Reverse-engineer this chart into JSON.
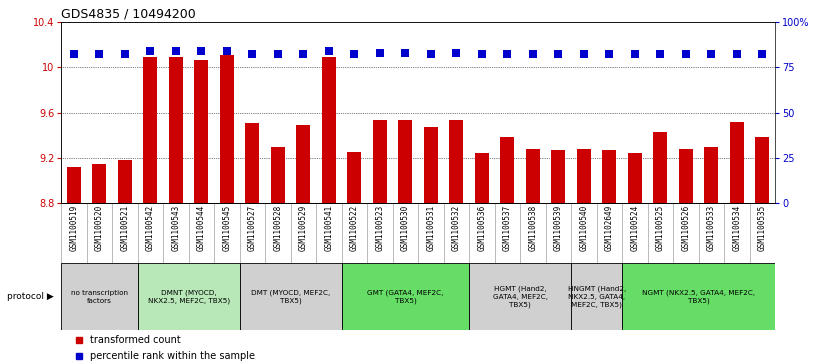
{
  "title": "GDS4835 / 10494200",
  "samples": [
    "GSM1100519",
    "GSM1100520",
    "GSM1100521",
    "GSM1100542",
    "GSM1100543",
    "GSM1100544",
    "GSM1100545",
    "GSM1100527",
    "GSM1100528",
    "GSM1100529",
    "GSM1100541",
    "GSM1100522",
    "GSM1100523",
    "GSM1100530",
    "GSM1100531",
    "GSM1100532",
    "GSM1100536",
    "GSM1100537",
    "GSM1100538",
    "GSM1100539",
    "GSM1100540",
    "GSM1102649",
    "GSM1100524",
    "GSM1100525",
    "GSM1100526",
    "GSM1100533",
    "GSM1100534",
    "GSM1100535"
  ],
  "bar_values": [
    9.12,
    9.15,
    9.18,
    10.09,
    10.09,
    10.06,
    10.11,
    9.51,
    9.3,
    9.49,
    10.09,
    9.25,
    9.53,
    9.53,
    9.47,
    9.53,
    9.24,
    9.38,
    9.28,
    9.27,
    9.28,
    9.27,
    9.24,
    9.43,
    9.28,
    9.3,
    9.52,
    9.38
  ],
  "percentile_values": [
    82,
    82,
    82,
    84,
    84,
    84,
    84,
    82,
    82,
    82,
    84,
    82,
    83,
    83,
    82,
    83,
    82,
    82,
    82,
    82,
    82,
    82,
    82,
    82,
    82,
    82,
    82,
    82
  ],
  "ymin": 8.8,
  "ymax": 10.4,
  "yticks_left": [
    8.8,
    9.2,
    9.6,
    10.0,
    10.4
  ],
  "ytick_labels_left": [
    "8.8",
    "9.2",
    "9.6",
    "10",
    "10.4"
  ],
  "yticks_right": [
    0,
    25,
    50,
    75,
    100
  ],
  "ytick_labels_right": [
    "0",
    "25",
    "50",
    "75",
    "100%"
  ],
  "bar_color": "#cc0000",
  "dot_color": "#0000cc",
  "bar_bottom": 8.8,
  "protocols": [
    {
      "label": "no transcription\nfactors",
      "start": 0,
      "end": 3,
      "color": "#d0d0d0"
    },
    {
      "label": "DMNT (MYOCD,\nNKX2.5, MEF2C, TBX5)",
      "start": 3,
      "end": 7,
      "color": "#b8e8b8"
    },
    {
      "label": "DMT (MYOCD, MEF2C,\nTBX5)",
      "start": 7,
      "end": 11,
      "color": "#d0d0d0"
    },
    {
      "label": "GMT (GATA4, MEF2C,\nTBX5)",
      "start": 11,
      "end": 16,
      "color": "#66dd66"
    },
    {
      "label": "HGMT (Hand2,\nGATA4, MEF2C,\nTBX5)",
      "start": 16,
      "end": 20,
      "color": "#d0d0d0"
    },
    {
      "label": "HNGMT (Hand2,\nNKX2.5, GATA4,\nMEF2C, TBX5)",
      "start": 20,
      "end": 22,
      "color": "#d0d0d0"
    },
    {
      "label": "NGMT (NKX2.5, GATA4, MEF2C,\nTBX5)",
      "start": 22,
      "end": 28,
      "color": "#66dd66"
    }
  ],
  "title_fontsize": 9,
  "tick_fontsize": 7,
  "dot_size": 28,
  "bar_width": 0.55
}
